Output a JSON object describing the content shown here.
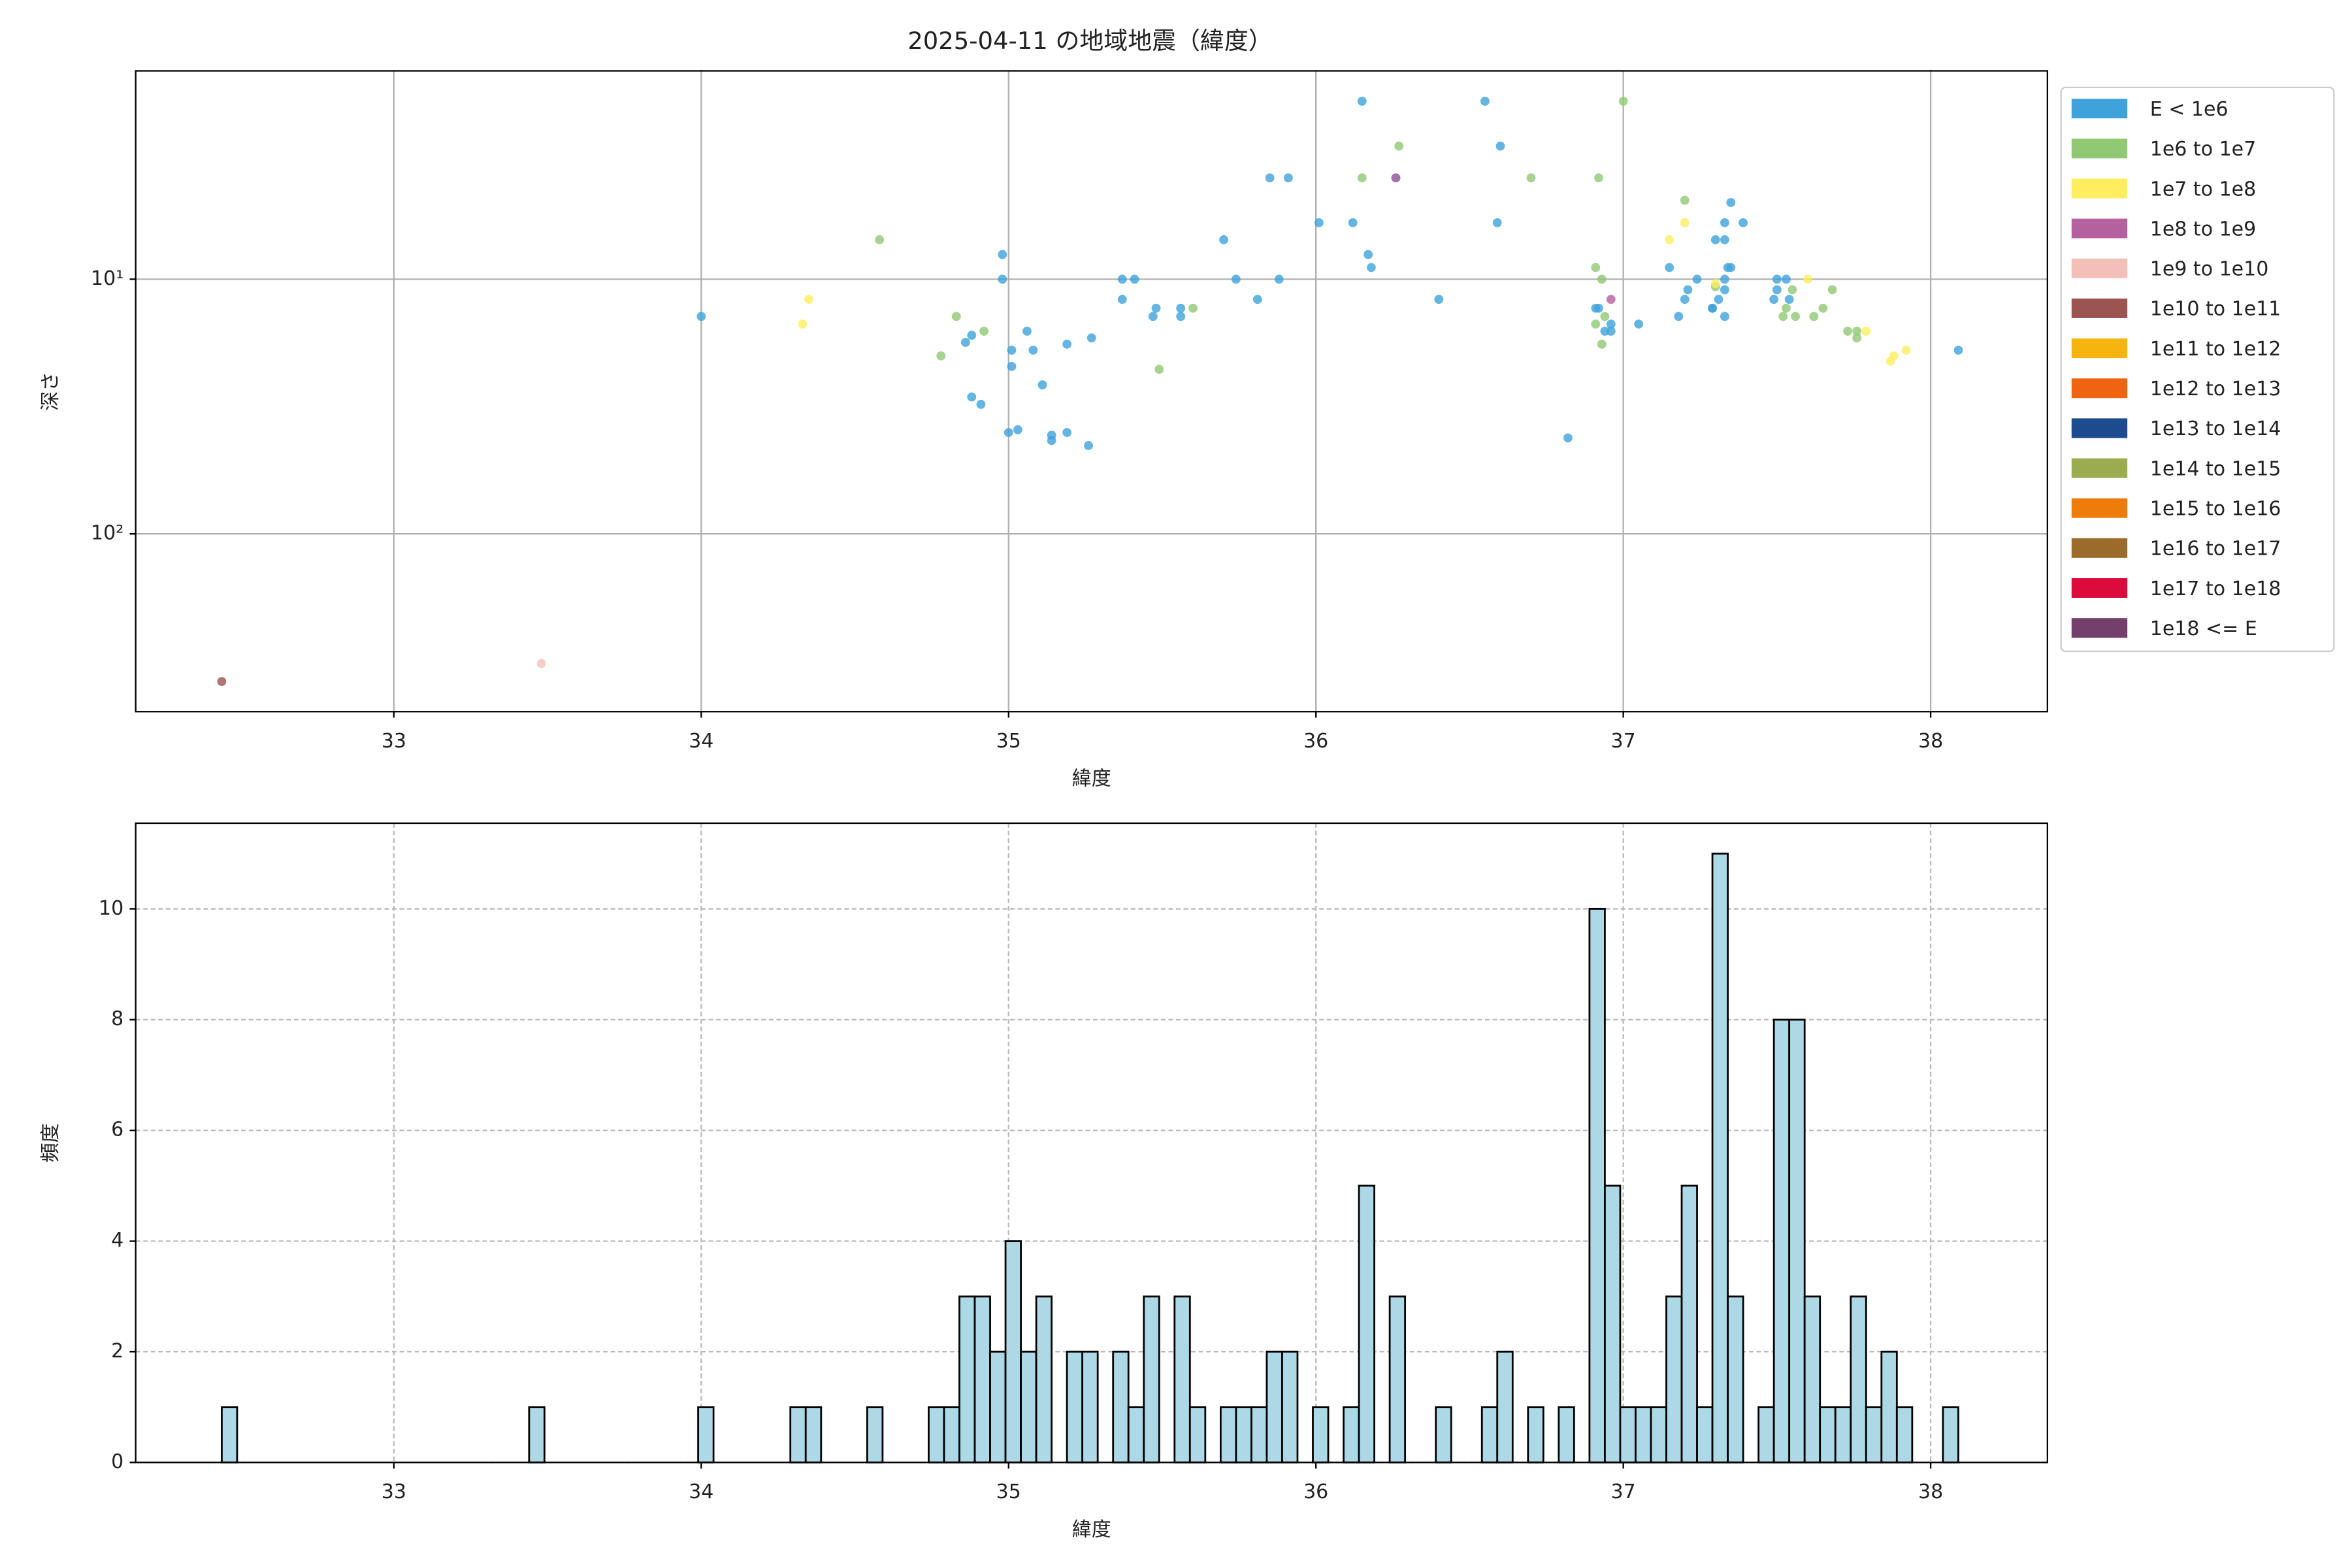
{
  "chart_data": [
    {
      "type": "scatter",
      "title": "2025-04-11 の地域地震（緯度）",
      "xlabel": "緯度",
      "ylabel": "深さ",
      "xlim": [
        32.16,
        38.38
      ],
      "xticks": [
        33,
        34,
        35,
        36,
        37,
        38
      ],
      "yscale": "log",
      "ylim": [
        499,
        1.52
      ],
      "yticks": [
        {
          "value": 10,
          "label": "10¹"
        },
        {
          "value": 100,
          "label": "10²"
        }
      ],
      "grid": true,
      "grid_style": "solid",
      "legend": "outside upper right",
      "series": [
        {
          "name": "E < 1e6",
          "color": "#3fa2db",
          "x": [
            34.0,
            34.98,
            34.98,
            35.01,
            35.01,
            35.0,
            35.03,
            34.88,
            34.91,
            34.86,
            34.88,
            35.06,
            35.08,
            35.11,
            35.14,
            35.14,
            35.19,
            35.26,
            35.19,
            35.27,
            35.37,
            35.41,
            35.37,
            35.47,
            35.48,
            35.56,
            35.56,
            35.7,
            35.74,
            35.81,
            35.88,
            35.85,
            35.91,
            36.01,
            36.12,
            36.15,
            36.17,
            36.18,
            36.26,
            36.4,
            36.55,
            36.6,
            36.59,
            36.82,
            36.91,
            36.92,
            36.96,
            36.96,
            36.94,
            37.05,
            37.15,
            37.18,
            37.2,
            37.21,
            37.24,
            37.29,
            37.3,
            37.33,
            37.33,
            37.35,
            37.39,
            37.34,
            37.35,
            37.33,
            37.33,
            37.31,
            37.33,
            37.29,
            37.49,
            37.5,
            37.53,
            37.5,
            37.54,
            38.09
          ],
          "y": [
            14,
            8,
            10,
            19,
            22,
            40,
            39,
            29,
            31,
            17.7,
            16.6,
            16,
            19,
            26,
            41,
            43,
            40,
            45,
            18,
            17,
            10,
            10,
            12,
            14,
            13,
            13,
            14,
            7,
            10,
            12,
            10,
            4,
            4,
            6,
            6,
            2,
            8,
            9,
            4,
            12,
            2,
            3,
            6,
            42,
            13,
            13,
            15,
            16,
            16,
            15,
            9,
            14,
            12,
            11,
            10,
            13,
            7,
            7,
            6,
            5,
            6,
            9,
            9,
            10,
            11,
            12,
            14,
            13,
            12,
            10,
            10,
            11,
            12,
            19
          ]
        },
        {
          "name": "1e6 to 1e7",
          "color": "#91c874",
          "x": [
            34.58,
            34.78,
            34.83,
            34.92,
            35.49,
            35.6,
            36.15,
            36.27,
            36.7,
            37.0,
            36.92,
            36.91,
            36.93,
            36.91,
            36.93,
            36.94,
            37.2,
            37.53,
            37.52,
            37.56,
            37.55,
            37.62,
            37.65,
            37.68,
            37.73,
            37.76,
            37.76,
            37.3
          ],
          "y": [
            7,
            20,
            14,
            16,
            22.6,
            13,
            4,
            3,
            4,
            2,
            4,
            9,
            10,
            15,
            18,
            14,
            4.9,
            13,
            14,
            14,
            11,
            14,
            13,
            11,
            16,
            16,
            17,
            10.7
          ]
        },
        {
          "name": "1e7 to 1e8",
          "color": "#fded5f",
          "x": [
            34.35,
            34.33,
            37.15,
            37.2,
            37.3,
            37.6,
            37.79,
            37.88,
            37.87,
            37.92
          ],
          "y": [
            12,
            15,
            7,
            6,
            10.4,
            10,
            16,
            20,
            21,
            19
          ]
        },
        {
          "name": "1e8 to 1e9",
          "color": "#b5609f",
          "x": [
            36.26,
            36.96
          ],
          "y": [
            4,
            12
          ]
        },
        {
          "name": "1e9 to 1e10",
          "color": "#f4bfb8",
          "x": [
            33.48
          ],
          "y": [
            323
          ]
        },
        {
          "name": "1e10 to 1e11",
          "color": "#9c5450",
          "x": [
            32.44
          ],
          "y": [
            380
          ]
        },
        {
          "name": "1e11 to 1e12",
          "color": "#f6b40e",
          "x": [],
          "y": []
        },
        {
          "name": "1e12 to 1e13",
          "color": "#ef6410",
          "x": [],
          "y": []
        },
        {
          "name": "1e13 to 1e14",
          "color": "#1d4b8f",
          "x": [],
          "y": []
        },
        {
          "name": "1e14 to 1e15",
          "color": "#9bab4f",
          "x": [],
          "y": []
        },
        {
          "name": "1e15 to 1e16",
          "color": "#ee7c0b",
          "x": [],
          "y": []
        },
        {
          "name": "1e16 to 1e17",
          "color": "#9a6b2a",
          "x": [],
          "y": []
        },
        {
          "name": "1e17 to 1e18",
          "color": "#dc0b3b",
          "x": [],
          "y": []
        },
        {
          "name": "1e18 <= E",
          "color": "#733f6b",
          "x": [],
          "y": []
        }
      ]
    },
    {
      "type": "histogram",
      "xlabel": "緯度",
      "ylabel": "頻度",
      "xlim": [
        32.16,
        38.38
      ],
      "xticks": [
        33,
        34,
        35,
        36,
        37,
        38
      ],
      "ylim": [
        0,
        11.55
      ],
      "yticks": [
        0,
        2,
        4,
        6,
        8,
        10
      ],
      "grid": true,
      "grid_style": "dashed",
      "color": "#add8e6",
      "edgecolor": "#000000",
      "bins": [
        32.44,
        32.49,
        32.54,
        32.59,
        32.64,
        32.69,
        32.74,
        32.79,
        32.84,
        32.89,
        32.94,
        32.99,
        33.04,
        33.09,
        33.14,
        33.19,
        33.24,
        33.29,
        33.34,
        33.39,
        33.44,
        33.49,
        33.54,
        33.59,
        33.64,
        33.69,
        33.74,
        33.79,
        33.84,
        33.89,
        33.94,
        33.99,
        34.04,
        34.09,
        34.14,
        34.19,
        34.24,
        34.29,
        34.34,
        34.39,
        34.44,
        34.49,
        34.54,
        34.59,
        34.64,
        34.69,
        34.74,
        34.79,
        34.84,
        34.89,
        34.94,
        34.99,
        35.04,
        35.09,
        35.14,
        35.19,
        35.24,
        35.29,
        35.34,
        35.39,
        35.44,
        35.49,
        35.54,
        35.59,
        35.64,
        35.69,
        35.74,
        35.79,
        35.84,
        35.89,
        35.94,
        35.99,
        36.04,
        36.09,
        36.14,
        36.19,
        36.24,
        36.29,
        36.34,
        36.39,
        36.44,
        36.49,
        36.54,
        36.59,
        36.64,
        36.69,
        36.74,
        36.79,
        36.84,
        36.89,
        36.94,
        36.99,
        37.04,
        37.09,
        37.14,
        37.19,
        37.24,
        37.29,
        37.34,
        37.39,
        37.44,
        37.49,
        37.54,
        37.59,
        37.64,
        37.69,
        37.74,
        37.79,
        37.84,
        37.89,
        37.94,
        37.99,
        38.04,
        38.09
      ],
      "counts": [
        1,
        0,
        0,
        0,
        0,
        0,
        0,
        0,
        0,
        0,
        0,
        0,
        0,
        0,
        0,
        0,
        0,
        0,
        0,
        0,
        1,
        0,
        0,
        0,
        0,
        0,
        0,
        0,
        0,
        0,
        0,
        1,
        0,
        0,
        0,
        0,
        0,
        1,
        1,
        0,
        0,
        0,
        1,
        0,
        0,
        0,
        1,
        1,
        3,
        3,
        2,
        4,
        2,
        3,
        0,
        2,
        2,
        0,
        2,
        1,
        3,
        0,
        3,
        1,
        0,
        1,
        1,
        1,
        2,
        2,
        0,
        1,
        0,
        1,
        5,
        0,
        3,
        0,
        0,
        1,
        0,
        0,
        1,
        2,
        0,
        1,
        0,
        1,
        0,
        10,
        5,
        1,
        1,
        1,
        3,
        5,
        1,
        11,
        3,
        0,
        1,
        8,
        8,
        3,
        1,
        1,
        3,
        1,
        2,
        1,
        0,
        0,
        1
      ]
    }
  ]
}
